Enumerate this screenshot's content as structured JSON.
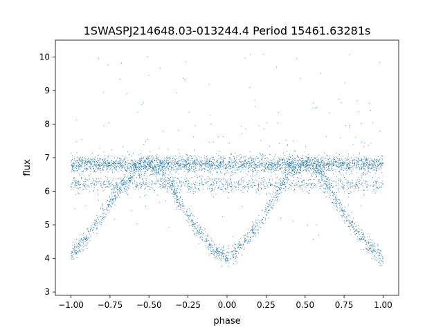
{
  "chart_data": {
    "type": "scatter",
    "title": "1SWASPJ214648.03-013244.4 Period 15461.63281s",
    "xlabel": "phase",
    "ylabel": "flux",
    "xlim": [
      -1.1,
      1.1
    ],
    "ylim": [
      2.9,
      10.5
    ],
    "xticks": [
      -1.0,
      -0.75,
      -0.5,
      -0.25,
      0.0,
      0.25,
      0.5,
      0.75,
      1.0
    ],
    "xtick_labels": [
      "−1.00",
      "−0.75",
      "−0.50",
      "−0.25",
      "0.00",
      "0.25",
      "0.50",
      "0.75",
      "1.00"
    ],
    "yticks": [
      3,
      4,
      5,
      6,
      7,
      8,
      9,
      10
    ],
    "ytick_labels": [
      "3",
      "4",
      "5",
      "6",
      "7",
      "8",
      "9",
      "10"
    ],
    "grid": false,
    "legend": "none",
    "marker_color": "#1f77b4",
    "series": [
      {
        "description_points": [
          {
            "x": -1.0,
            "y": 4.1
          },
          {
            "x": -0.9,
            "y": 4.6
          },
          {
            "x": -0.8,
            "y": 5.3
          },
          {
            "x": -0.7,
            "y": 6.0
          },
          {
            "x": -0.6,
            "y": 6.6
          },
          {
            "x": -0.5,
            "y": 6.8
          },
          {
            "x": -0.4,
            "y": 6.5
          },
          {
            "x": -0.3,
            "y": 5.6
          },
          {
            "x": -0.2,
            "y": 4.9
          },
          {
            "x": -0.1,
            "y": 4.3
          },
          {
            "x": 0.0,
            "y": 4.0
          },
          {
            "x": 0.1,
            "y": 4.4
          },
          {
            "x": 0.2,
            "y": 5.0
          },
          {
            "x": 0.3,
            "y": 5.8
          },
          {
            "x": 0.4,
            "y": 6.6
          },
          {
            "x": 0.5,
            "y": 6.8
          },
          {
            "x": 0.6,
            "y": 6.6
          },
          {
            "x": 0.7,
            "y": 5.7
          },
          {
            "x": 0.8,
            "y": 5.0
          },
          {
            "x": 0.9,
            "y": 4.4
          },
          {
            "x": 1.0,
            "y": 4.0
          }
        ]
      }
    ],
    "bands": [
      {
        "y_center": 6.8,
        "y_spread": 0.12,
        "x_range": [
          -1.0,
          1.0
        ]
      },
      {
        "y_center": 6.2,
        "y_spread": 0.12,
        "x_range": [
          -1.0,
          1.0
        ]
      }
    ]
  }
}
